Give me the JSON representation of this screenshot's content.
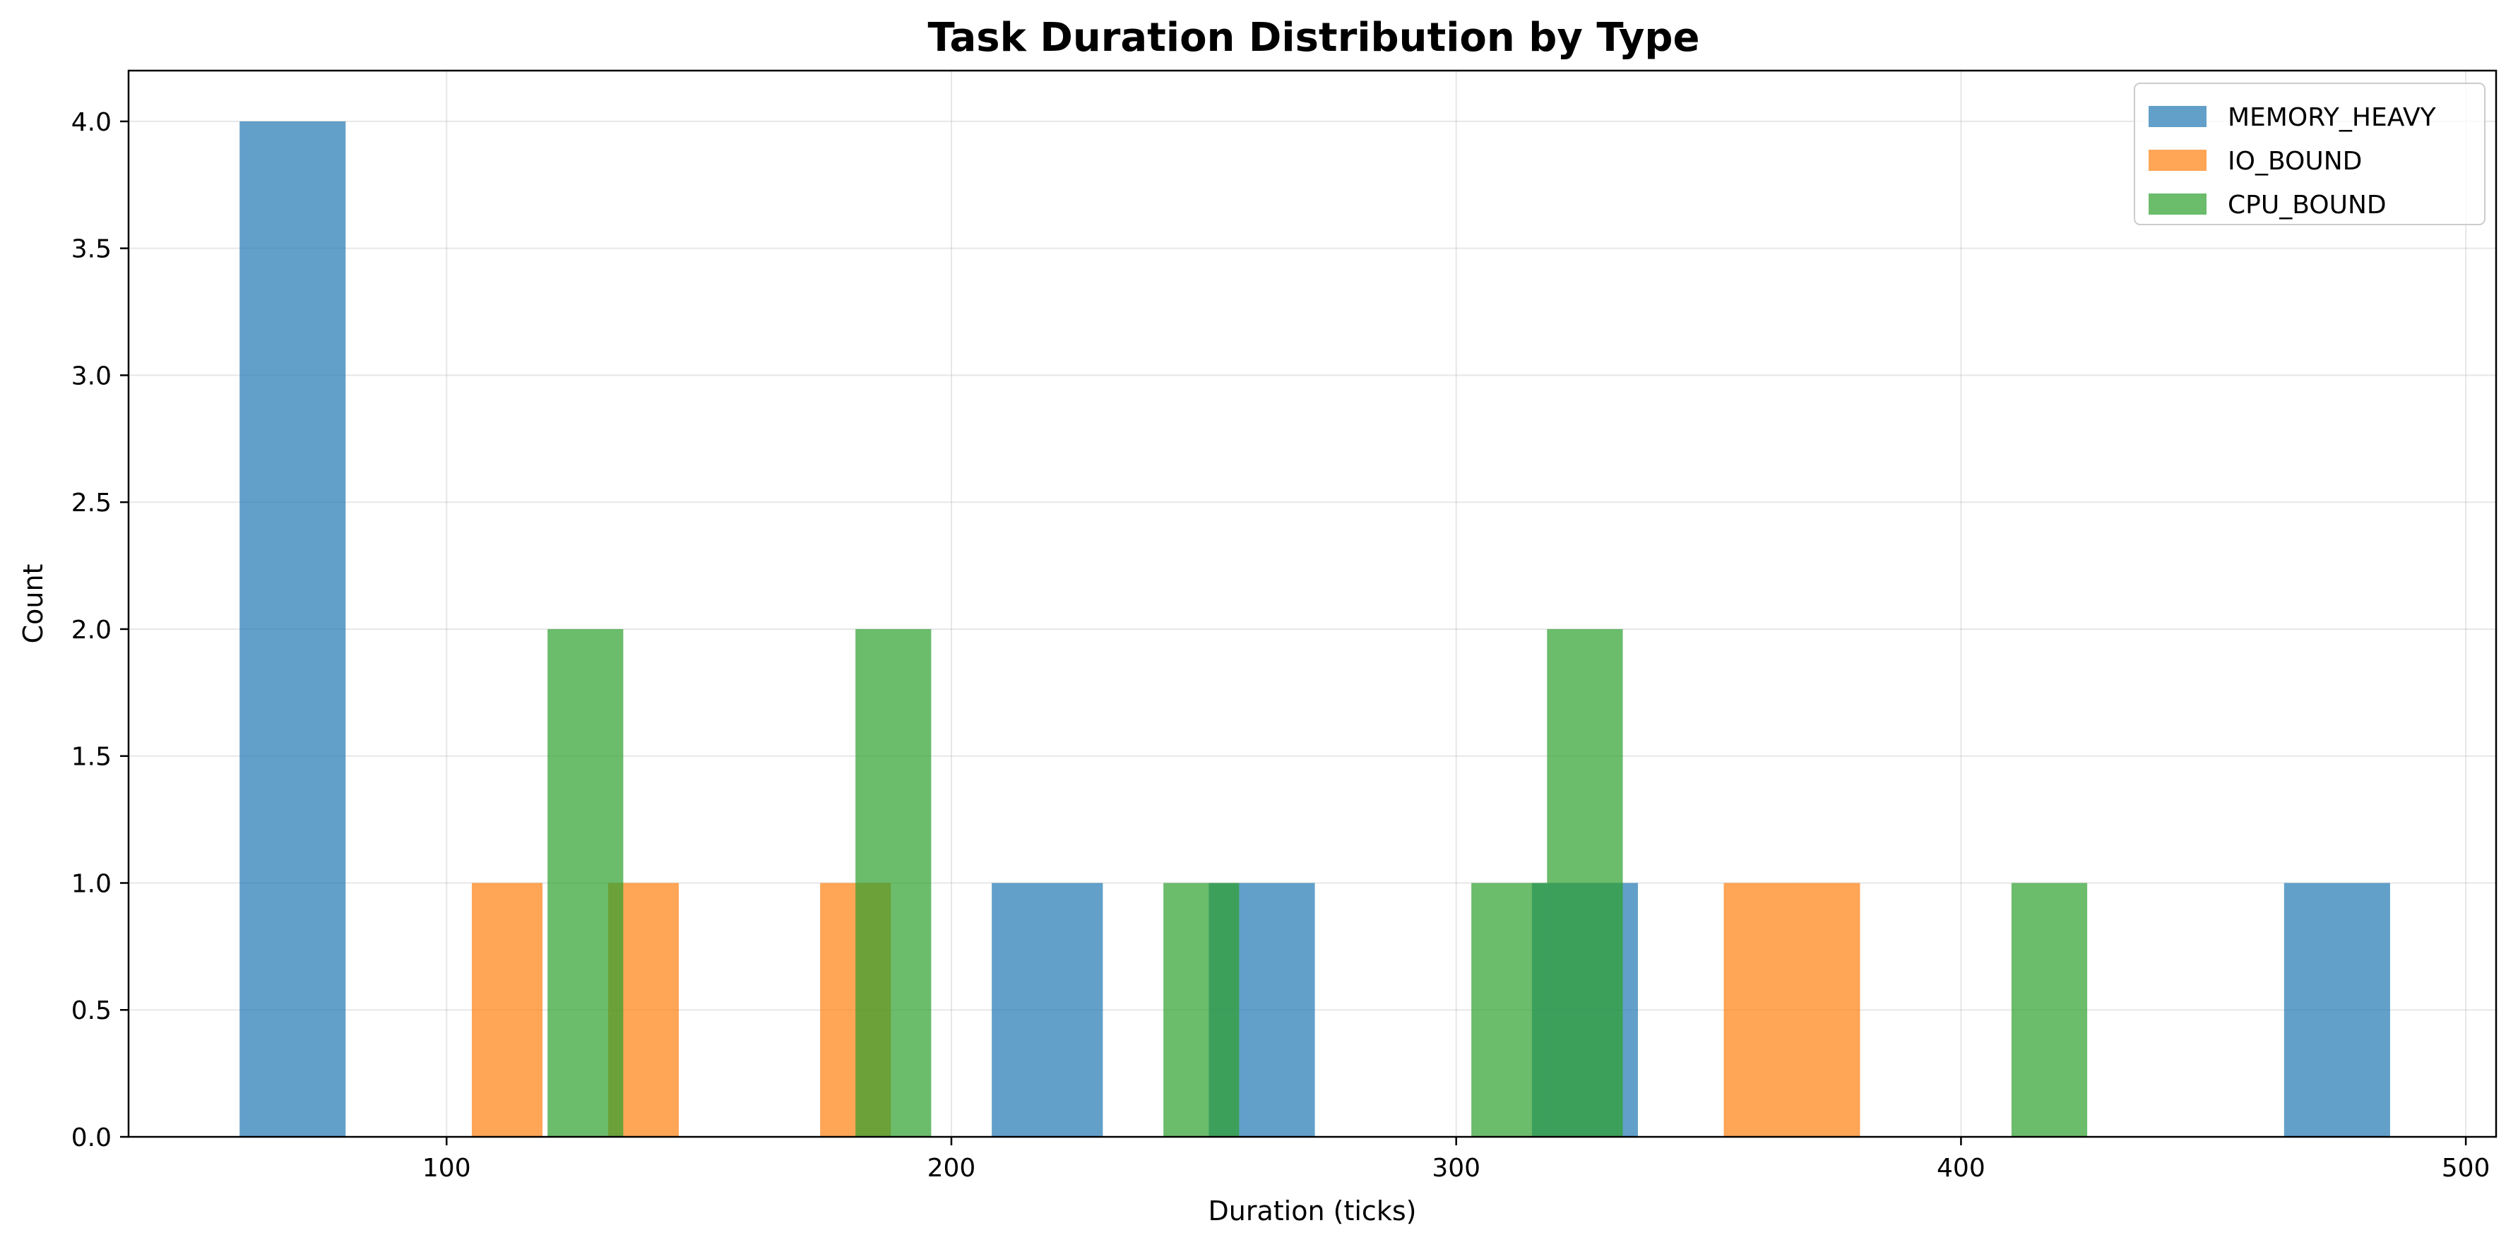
{
  "chart_data": {
    "type": "bar",
    "chart_kind": "overlapping histogram",
    "title": "Task Duration Distribution by Type",
    "xlabel": "Duration (ticks)",
    "ylabel": "Count",
    "xlim": [
      37,
      506
    ],
    "ylim": [
      0,
      4.2
    ],
    "xticks": [
      100,
      200,
      300,
      400,
      500
    ],
    "xtick_labels": [
      "100",
      "200",
      "300",
      "400",
      "500"
    ],
    "yticks": [
      0,
      0.5,
      1,
      1.5,
      2,
      2.5,
      3,
      3.5,
      4
    ],
    "ytick_labels": [
      "0.0",
      "0.5",
      "1.0",
      "1.5",
      "2.0",
      "2.5",
      "3.0",
      "3.5",
      "4.0"
    ],
    "grid": true,
    "legend_position": "top-right",
    "bar_opacity": 0.7,
    "series": [
      {
        "name": "MEMORY_HEAVY",
        "color": "#1f77b4",
        "bins": [
          {
            "x0": 59,
            "x1": 80,
            "count": 4
          },
          {
            "x0": 208,
            "x1": 230,
            "count": 1
          },
          {
            "x0": 251,
            "x1": 272,
            "count": 1
          },
          {
            "x0": 315,
            "x1": 336,
            "count": 1
          },
          {
            "x0": 464,
            "x1": 485,
            "count": 1
          }
        ]
      },
      {
        "name": "IO_BOUND",
        "color": "#ff7f0e",
        "bins": [
          {
            "x0": 105,
            "x1": 119,
            "count": 1
          },
          {
            "x0": 132,
            "x1": 146,
            "count": 1
          },
          {
            "x0": 174,
            "x1": 188,
            "count": 1
          },
          {
            "x0": 353,
            "x1": 367,
            "count": 1
          },
          {
            "x0": 367,
            "x1": 380,
            "count": 1
          }
        ]
      },
      {
        "name": "CPU_BOUND",
        "color": "#2ca02c",
        "bins": [
          {
            "x0": 120,
            "x1": 135,
            "count": 2
          },
          {
            "x0": 181,
            "x1": 196,
            "count": 2
          },
          {
            "x0": 242,
            "x1": 257,
            "count": 1
          },
          {
            "x0": 303,
            "x1": 318,
            "count": 1
          },
          {
            "x0": 318,
            "x1": 333,
            "count": 2
          },
          {
            "x0": 410,
            "x1": 425,
            "count": 1
          }
        ]
      }
    ]
  }
}
